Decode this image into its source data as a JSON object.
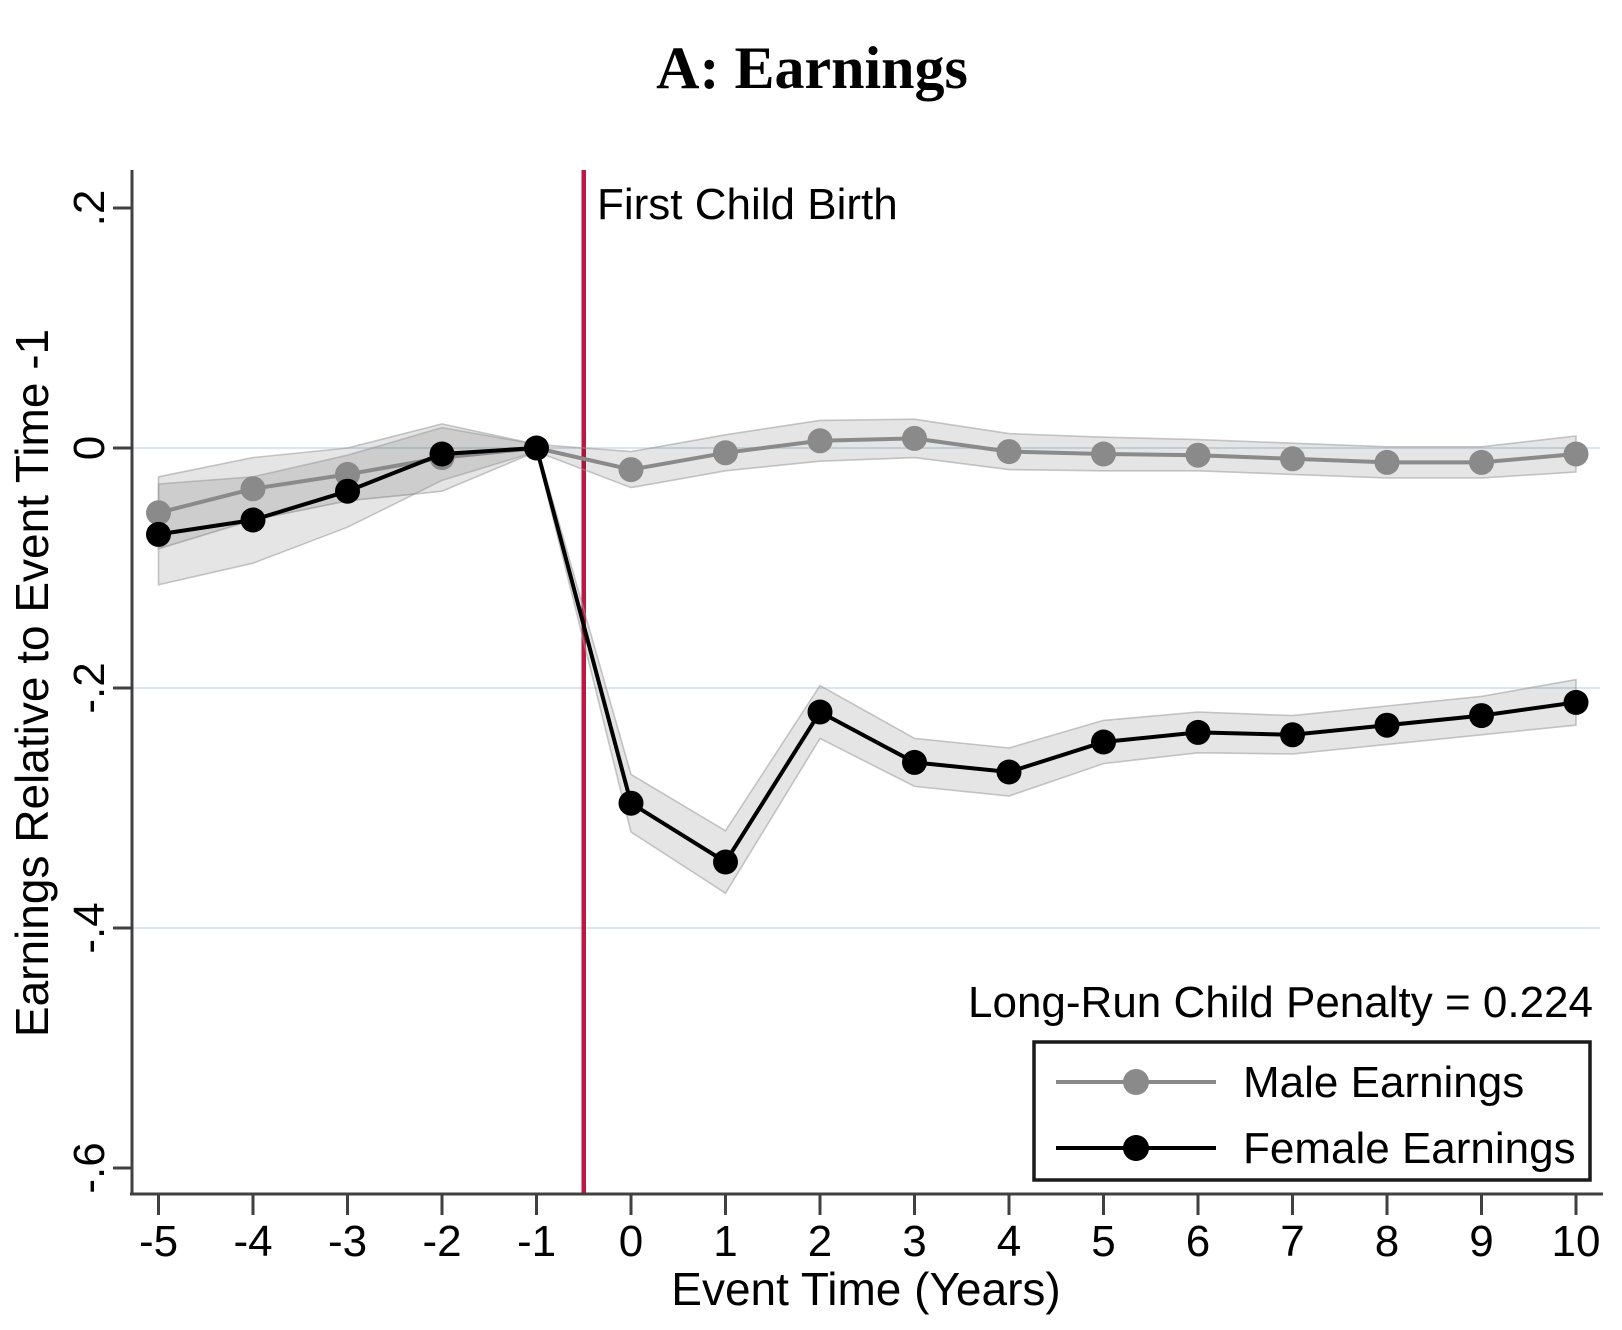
{
  "chart_data": {
    "type": "line",
    "title": "A: Earnings",
    "xlabel": "Event Time (Years)",
    "ylabel": "Earnings Relative to Event Time -1",
    "annotation": "Long-Run Child Penalty = 0.224",
    "event_line": {
      "x": -0.5,
      "label": "First Child Birth"
    },
    "x": [
      -5,
      -4,
      -3,
      -2,
      -1,
      0,
      1,
      2,
      3,
      4,
      5,
      6,
      7,
      8,
      9,
      10
    ],
    "x_tick_labels": [
      "-5",
      "-4",
      "-3",
      "-2",
      "-1",
      "0",
      "1",
      "2",
      "3",
      "4",
      "5",
      "6",
      "7",
      "8",
      "9",
      "10"
    ],
    "y_ticks": [
      0.2,
      0,
      -0.2,
      -0.4,
      -0.6
    ],
    "y_tick_labels": [
      ".2",
      "0",
      "-.2",
      "-.4",
      "-.6"
    ],
    "xlim": [
      -5.3,
      10.3
    ],
    "ylim": [
      -0.62,
      0.23
    ],
    "gridlines_at": [
      0,
      -0.2,
      -0.4
    ],
    "grid": "horizontal-only",
    "legend_position": "bottom-right",
    "series": [
      {
        "name": "Male Earnings",
        "color": "#8a8a8a",
        "values": [
          -0.054,
          -0.034,
          -0.022,
          -0.008,
          0.0,
          -0.018,
          -0.004,
          0.006,
          0.008,
          -0.003,
          -0.005,
          -0.006,
          -0.009,
          -0.012,
          -0.012,
          -0.005
        ],
        "ci_halfwidth": [
          0.03,
          0.026,
          0.022,
          0.028,
          0.003,
          0.015,
          0.015,
          0.017,
          0.016,
          0.015,
          0.014,
          0.013,
          0.013,
          0.013,
          0.013,
          0.015
        ]
      },
      {
        "name": "Female Earnings",
        "color": "#000000",
        "values": [
          -0.072,
          -0.06,
          -0.036,
          -0.005,
          0.0,
          -0.296,
          -0.345,
          -0.22,
          -0.262,
          -0.27,
          -0.245,
          -0.237,
          -0.239,
          -0.231,
          -0.223,
          -0.212
        ],
        "ci_halfwidth": [
          0.042,
          0.036,
          0.03,
          0.022,
          0.003,
          0.024,
          0.026,
          0.022,
          0.02,
          0.02,
          0.018,
          0.017,
          0.016,
          0.016,
          0.016,
          0.019
        ]
      }
    ]
  },
  "colors": {
    "event_line": "#bb1942",
    "male": "#8a8a8a",
    "female": "#000000",
    "ci_fill": "#000000",
    "gridline": "#d9e6ef",
    "axis": "#404040",
    "legend_border": "#1a1a1a"
  }
}
